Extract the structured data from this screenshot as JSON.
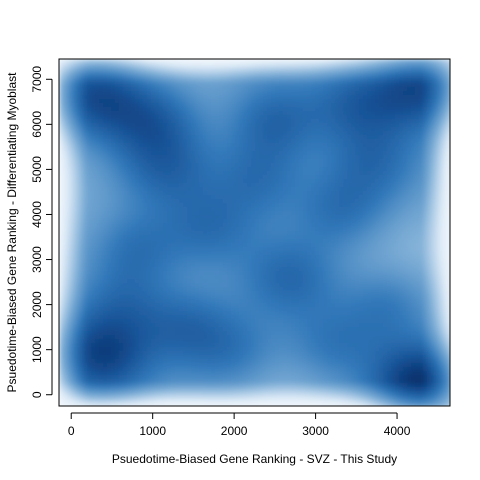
{
  "chart_data": {
    "type": "heatmap",
    "subtype": "smoothed-density-scatter",
    "title": "",
    "xlabel": "Psuedotime-Biased Gene Ranking - SVZ - This Study",
    "ylabel": "Psuedotime-Biased Gene Ranking - Differentiating Myoblast",
    "xlim": [
      -150,
      4650
    ],
    "ylim": [
      -250,
      7450
    ],
    "x_ticks": [
      0,
      1000,
      2000,
      3000,
      4000
    ],
    "y_ticks": [
      0,
      1000,
      2000,
      3000,
      4000,
      5000,
      6000,
      7000
    ],
    "x_tick_labels": [
      "0",
      "1000",
      "2000",
      "3000",
      "4000"
    ],
    "y_tick_labels": [
      "0",
      "1000",
      "2000",
      "3000",
      "4000",
      "5000",
      "6000",
      "7000"
    ],
    "grid": false,
    "colors": {
      "low": "#ffffff",
      "high": "#08306b",
      "mid": "#2f6fb0"
    },
    "density_peaks": [
      {
        "x": 4300,
        "y": 250,
        "w": 1.0
      },
      {
        "x": 350,
        "y": 850,
        "w": 0.85
      },
      {
        "x": 4300,
        "y": 6850,
        "w": 0.85
      },
      {
        "x": 300,
        "y": 6650,
        "w": 0.8
      },
      {
        "x": 2500,
        "y": 6050,
        "w": 0.6
      },
      {
        "x": 1000,
        "y": 6100,
        "w": 0.55
      },
      {
        "x": 3500,
        "y": 6500,
        "w": 0.55
      },
      {
        "x": 1400,
        "y": 1500,
        "w": 0.5
      },
      {
        "x": 800,
        "y": 3200,
        "w": 0.5
      },
      {
        "x": 2300,
        "y": 4800,
        "w": 0.5
      },
      {
        "x": 3300,
        "y": 4100,
        "w": 0.45
      },
      {
        "x": 2700,
        "y": 2600,
        "w": 0.45
      },
      {
        "x": 3900,
        "y": 2000,
        "w": 0.45
      },
      {
        "x": 1700,
        "y": 3700,
        "w": 0.45
      },
      {
        "x": 1200,
        "y": 5000,
        "w": 0.45
      },
      {
        "x": 3700,
        "y": 5200,
        "w": 0.4
      },
      {
        "x": 600,
        "y": 2000,
        "w": 0.45
      },
      {
        "x": 2000,
        "y": 900,
        "w": 0.4
      },
      {
        "x": 3200,
        "y": 1100,
        "w": 0.4
      }
    ]
  }
}
